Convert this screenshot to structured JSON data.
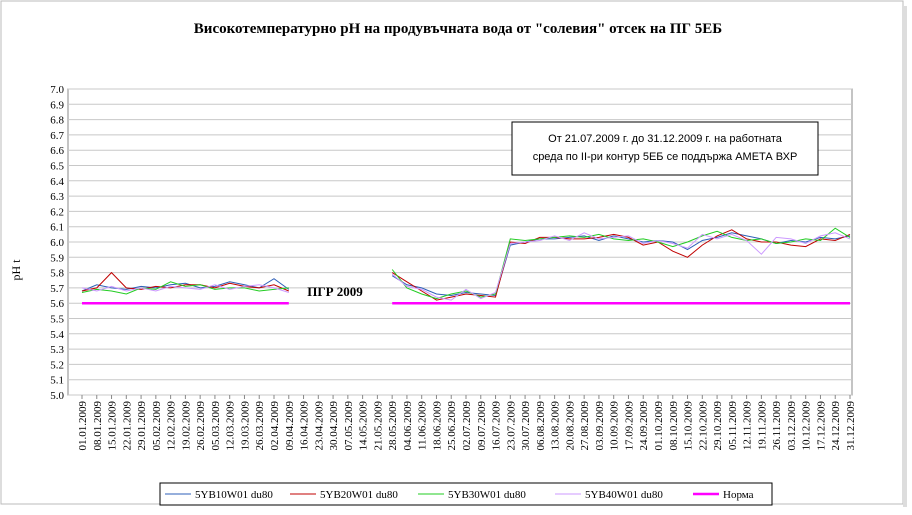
{
  "chart_data": {
    "type": "line",
    "title": "Високотемпературно pH на продувъчната вода от \"солевия\" отсек на ПГ 5ЕБ",
    "y_label": "pH t",
    "annotations": [
      "От 21.07.2009 г. до 31.12.2009 г. на работната",
      "среда по II-ри контур 5ЕБ се поддържа АМЕТА ВХР",
      "ПГР 2009"
    ],
    "categories": [
      "01.01.2009",
      "08.01.2009",
      "15.01.2009",
      "22.01.2009",
      "29.01.2009",
      "05.02.2009",
      "12.02.2009",
      "19.02.2009",
      "26.02.2009",
      "05.03.2009",
      "12.03.2009",
      "19.03.2009",
      "26.03.2009",
      "02.04.2009",
      "09.04.2009",
      "16.04.2009",
      "23.04.2009",
      "30.04.2009",
      "07.05.2009",
      "14.05.2009",
      "21.05.2009",
      "28.05.2009",
      "04.06.2009",
      "11.06.2009",
      "18.06.2009",
      "25.06.2009",
      "02.07.2009",
      "09.07.2009",
      "16.07.2009",
      "23.07.2009",
      "30.07.2009",
      "06.08.2009",
      "13.08.2009",
      "20.08.2009",
      "27.08.2009",
      "03.09.2009",
      "10.09.2009",
      "17.09.2009",
      "24.09.2009",
      "01.10.2009",
      "08.10.2009",
      "15.10.2009",
      "22.10.2009",
      "29.10.2009",
      "05.11.2009",
      "12.11.2009",
      "19.11.2009",
      "26.11.2009",
      "03.12.2009",
      "10.12.2009",
      "17.12.2009",
      "24.12.2009",
      "31.12.2009"
    ],
    "series": [
      {
        "name": "5YB10W01 du80",
        "color": "#2e5fb8",
        "width": 1,
        "values": [
          5.68,
          5.72,
          5.7,
          5.69,
          5.71,
          5.7,
          5.72,
          5.73,
          5.7,
          5.71,
          5.74,
          5.72,
          5.7,
          5.76,
          5.69,
          null,
          null,
          null,
          null,
          null,
          null,
          5.78,
          5.72,
          5.7,
          5.66,
          5.65,
          5.67,
          5.66,
          5.65,
          5.98,
          6.0,
          6.02,
          6.02,
          6.03,
          6.04,
          6.01,
          6.04,
          6.02,
          6.0,
          6.01,
          6.0,
          5.95,
          6.01,
          6.03,
          6.06,
          6.04,
          6.02,
          5.99,
          6.01,
          6.0,
          6.03,
          6.02,
          6.04
        ]
      },
      {
        "name": "5YB20W01 du80",
        "color": "#c00000",
        "width": 1,
        "values": [
          5.68,
          5.7,
          5.8,
          5.7,
          5.69,
          5.71,
          5.7,
          5.72,
          5.72,
          5.7,
          5.73,
          5.71,
          5.7,
          5.72,
          5.68,
          null,
          null,
          null,
          null,
          null,
          null,
          5.8,
          5.74,
          5.68,
          5.62,
          5.64,
          5.66,
          5.65,
          5.64,
          6.0,
          5.99,
          6.03,
          6.03,
          6.02,
          6.02,
          6.03,
          6.05,
          6.03,
          5.98,
          6.0,
          5.94,
          5.9,
          5.98,
          6.04,
          6.08,
          6.02,
          6.0,
          6.0,
          5.98,
          5.97,
          6.02,
          6.01,
          6.05
        ]
      },
      {
        "name": "5YB30W01 du80",
        "color": "#22cc22",
        "width": 1,
        "values": [
          5.67,
          5.69,
          5.68,
          5.66,
          5.7,
          5.69,
          5.74,
          5.71,
          5.72,
          5.69,
          5.7,
          5.7,
          5.68,
          5.69,
          5.7,
          null,
          null,
          null,
          null,
          null,
          null,
          5.82,
          5.7,
          5.66,
          5.63,
          5.66,
          5.68,
          5.64,
          5.66,
          6.02,
          6.01,
          6.02,
          6.03,
          6.04,
          6.03,
          6.05,
          6.02,
          6.01,
          6.02,
          6.0,
          5.97,
          6.0,
          6.04,
          6.07,
          6.03,
          6.01,
          6.02,
          5.99,
          6.0,
          6.02,
          6.01,
          6.09,
          6.03
        ]
      },
      {
        "name": "5YB40W01 du80",
        "color": "#cc99ff",
        "width": 1,
        "values": [
          5.7,
          5.68,
          5.71,
          5.68,
          5.7,
          5.68,
          5.71,
          5.7,
          5.69,
          5.72,
          5.69,
          5.71,
          5.72,
          5.7,
          5.67,
          null,
          null,
          null,
          null,
          null,
          null,
          5.79,
          5.71,
          5.69,
          5.64,
          5.62,
          5.69,
          5.63,
          5.67,
          5.99,
          6.0,
          6.01,
          6.04,
          6.01,
          6.06,
          6.02,
          6.03,
          6.04,
          5.99,
          6.01,
          5.99,
          5.96,
          6.05,
          6.02,
          6.05,
          6.01,
          5.92,
          6.03,
          6.02,
          5.99,
          6.04,
          6.06,
          6.02
        ]
      },
      {
        "name": "Норма",
        "color": "#ff00ff",
        "width": 2.5,
        "values": [
          5.6,
          5.6,
          5.6,
          5.6,
          5.6,
          5.6,
          5.6,
          5.6,
          5.6,
          5.6,
          5.6,
          5.6,
          5.6,
          5.6,
          5.6,
          null,
          null,
          null,
          null,
          null,
          null,
          5.6,
          5.6,
          5.6,
          5.6,
          5.6,
          5.6,
          5.6,
          5.6,
          5.6,
          5.6,
          5.6,
          5.6,
          5.6,
          5.6,
          5.6,
          5.6,
          5.6,
          5.6,
          5.6,
          5.6,
          5.6,
          5.6,
          5.6,
          5.6,
          5.6,
          5.6,
          5.6,
          5.6,
          5.6,
          5.6,
          5.6,
          5.6
        ]
      }
    ],
    "ylim": [
      5,
      7
    ],
    "yticks": [
      {
        "value": 5,
        "label": "5.0"
      },
      5.1,
      5.2,
      5.3,
      5.4,
      5.5,
      5.6,
      5.7,
      5.8,
      5.9,
      {
        "value": 6,
        "label": "6.0"
      },
      6.1,
      6.2,
      6.3,
      6.4,
      6.5,
      6.6,
      6.7,
      6.8,
      6.9,
      {
        "value": 7,
        "label": "7.0"
      }
    ],
    "grid": true
  }
}
